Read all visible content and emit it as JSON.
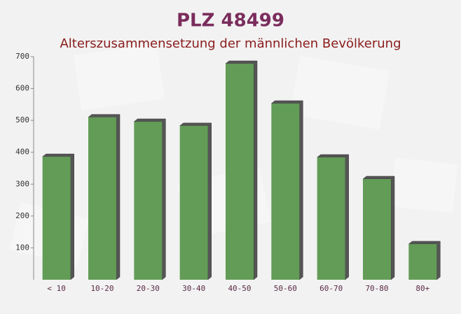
{
  "chart_data": {
    "type": "bar",
    "title": "PLZ 48499",
    "subtitle": "Alterszusammensetzung der männlichen Bevölkerung",
    "categories": [
      "< 10",
      "10-20",
      "20-30",
      "30-40",
      "40-50",
      "50-60",
      "60-70",
      "70-80",
      "80+"
    ],
    "values": [
      386,
      510,
      496,
      483,
      678,
      553,
      384,
      316,
      112
    ],
    "color": "#629c56",
    "ylim": [
      0,
      700
    ],
    "yticks": [
      100,
      200,
      300,
      400,
      500,
      600,
      700
    ],
    "grid": false
  }
}
